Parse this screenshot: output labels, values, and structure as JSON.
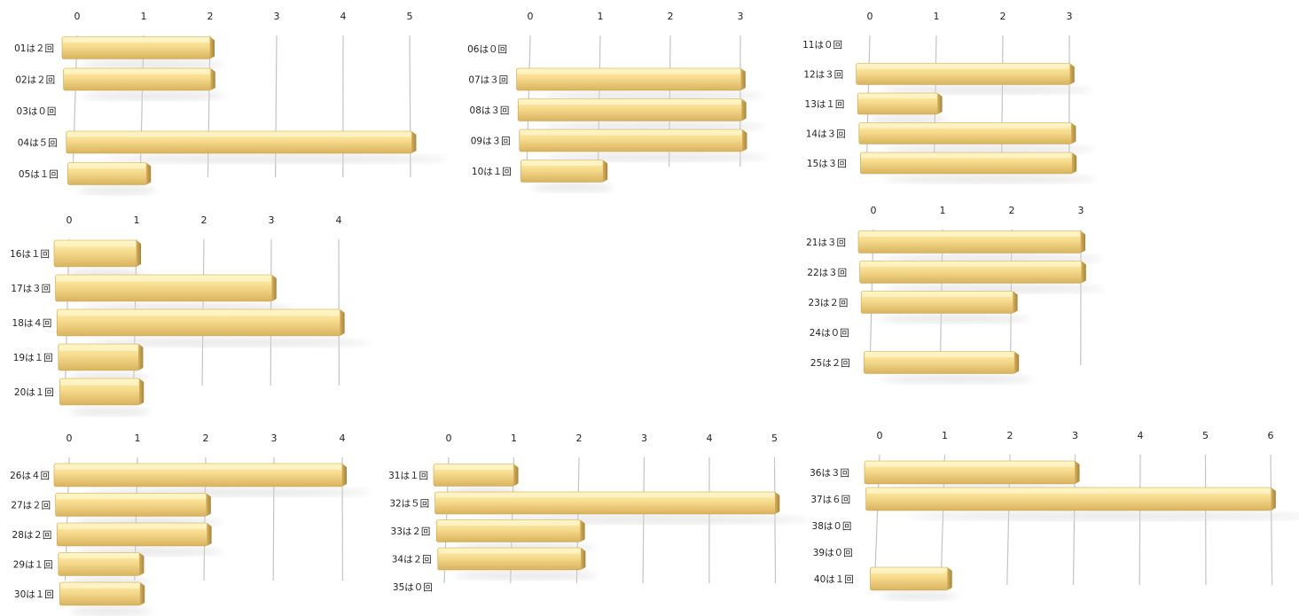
{
  "chart_data": [
    {
      "type": "bar",
      "orientation": "horizontal",
      "xlim": [
        0,
        5
      ],
      "ticks": [
        0,
        1,
        2,
        3,
        4,
        5
      ],
      "categories": [
        "01は２回",
        "02は２回",
        "03は０回",
        "04は５回",
        "05は１回"
      ],
      "values": [
        2,
        2,
        0,
        5,
        1
      ]
    },
    {
      "type": "bar",
      "orientation": "horizontal",
      "xlim": [
        0,
        3
      ],
      "ticks": [
        0,
        1,
        2,
        3
      ],
      "categories": [
        "06は０回",
        "07は３回",
        "08は３回",
        "09は３回",
        "10は１回"
      ],
      "values": [
        0,
        3,
        3,
        3,
        1
      ]
    },
    {
      "type": "bar",
      "orientation": "horizontal",
      "xlim": [
        0,
        3
      ],
      "ticks": [
        0,
        1,
        2,
        3
      ],
      "categories": [
        "11は０回",
        "12は３回",
        "13は１回",
        "14は３回",
        "15は３回"
      ],
      "values": [
        0,
        3,
        1,
        3,
        3
      ]
    },
    {
      "type": "bar",
      "orientation": "horizontal",
      "xlim": [
        0,
        4
      ],
      "ticks": [
        0,
        1,
        2,
        3,
        4
      ],
      "categories": [
        "16は１回",
        "17は３回",
        "18は４回",
        "19は１回",
        "20は１回"
      ],
      "values": [
        1,
        3,
        4,
        1,
        1
      ]
    },
    {
      "type": "bar",
      "orientation": "horizontal",
      "xlim": [
        0,
        3
      ],
      "ticks": [
        0,
        1,
        2,
        3
      ],
      "categories": [
        "21は３回",
        "22は３回",
        "23は２回",
        "24は０回",
        "25は２回"
      ],
      "values": [
        3,
        3,
        2,
        0,
        2
      ]
    },
    {
      "type": "bar",
      "orientation": "horizontal",
      "xlim": [
        0,
        4
      ],
      "ticks": [
        0,
        1,
        2,
        3,
        4
      ],
      "categories": [
        "26は４回",
        "27は２回",
        "28は２回",
        "29は１回",
        "30は１回"
      ],
      "values": [
        4,
        2,
        2,
        1,
        1
      ]
    },
    {
      "type": "bar",
      "orientation": "horizontal",
      "xlim": [
        0,
        5
      ],
      "ticks": [
        0,
        1,
        2,
        3,
        4,
        5
      ],
      "categories": [
        "31は１回",
        "32は５回",
        "33は２回",
        "34は２回",
        "35は０回"
      ],
      "values": [
        1,
        5,
        2,
        2,
        0
      ]
    },
    {
      "type": "bar",
      "orientation": "horizontal",
      "xlim": [
        0,
        6
      ],
      "ticks": [
        0,
        1,
        2,
        3,
        4,
        5,
        6
      ],
      "categories": [
        "36は３回",
        "37は６回",
        "38は０回",
        "39は０回",
        "40は１回"
      ],
      "values": [
        3,
        6,
        0,
        0,
        1
      ]
    }
  ],
  "colors": {
    "bar_top": "#fff1b0",
    "bar_mid": "#f3d382",
    "bar_bottom": "#d8b35f",
    "bar_end": "#b89448",
    "grid": "#c4c4c4",
    "shadow": "#d6d6d6"
  }
}
